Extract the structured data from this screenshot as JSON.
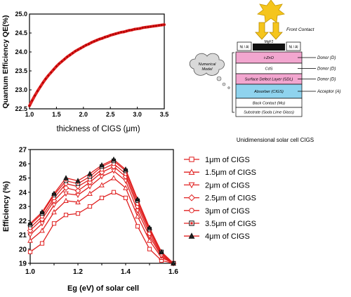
{
  "colors": {
    "series": "#e02020",
    "top_line": "#e02020",
    "layer_izno": "#f2a6cf",
    "layer_sdl": "#f2a6cf",
    "layer_absorber": "#8fd3ee",
    "layer_plain": "#ffffff",
    "contact_dark": "#111111",
    "sun": "#f5c51c",
    "arrow": "#f5c51c"
  },
  "top_chart": {
    "ylabel": "Quantum Efficiency QE(%)",
    "xlabel": "thickness of CIGS (μm)",
    "x_ticks": [
      "1.0",
      "1.5",
      "2.0",
      "2.5",
      "3.0",
      "3.5"
    ],
    "y_ticks": [
      "22.5",
      "23.0",
      "23.5",
      "24.0",
      "24.5",
      "25.0"
    ]
  },
  "bottom_chart": {
    "ylabel": "Efficiency (%)",
    "xlabel": "Eg (eV) of solar cell",
    "x_ticks": [
      "1.0",
      "1.2",
      "1.4",
      "1.6"
    ],
    "y_ticks": [
      "19",
      "20",
      "21",
      "22",
      "23",
      "24",
      "25",
      "26",
      "27"
    ]
  },
  "legend": [
    {
      "label": "1μm of CIGS",
      "marker": "square"
    },
    {
      "label": "1.5μm of CIGS",
      "marker": "triangle-up"
    },
    {
      "label": "2μm of CIGS",
      "marker": "triangle-down"
    },
    {
      "label": "2.5μm of CIGS",
      "marker": "diamond"
    },
    {
      "label": "3μm of CIGS",
      "marker": "circle"
    },
    {
      "label": "3.5μm of CIGS",
      "marker": "square-dark"
    },
    {
      "label": "4μm of CIGS",
      "marker": "triangle-dark"
    }
  ],
  "diagram": {
    "caption": "Unidimensional solar cell CIGS",
    "front_contact": "Front Contact",
    "cloud_label": "Numerical Model",
    "contact_left": "Ni / Al",
    "contact_right": "Ni / Al",
    "mgf2": "MgF2",
    "layers": [
      {
        "name": "i-ZnO",
        "side_label": "Donor (D)",
        "color_key": "layer_izno"
      },
      {
        "name": "CdS",
        "side_label": "Donor (D)",
        "color_key": "layer_plain"
      },
      {
        "name": "Surface Defect Layer (SDL)",
        "side_label": "Donor (D)",
        "color_key": "layer_sdl"
      },
      {
        "name": "Absorber (CIGS)",
        "side_label": "Acceptor (A)",
        "color_key": "layer_absorber"
      },
      {
        "name": "Back Contact (Mo)",
        "side_label": "",
        "color_key": "layer_plain"
      },
      {
        "name": "Substrate (Soda Lime Glass)",
        "side_label": "",
        "color_key": "layer_plain"
      }
    ]
  },
  "chart_data": [
    {
      "type": "line",
      "xlabel": "thickness of CIGS (μm)",
      "ylabel": "Quantum Efficiency QE(%)",
      "xlim": [
        1.0,
        3.5
      ],
      "ylim": [
        22.5,
        25.0
      ],
      "series": [
        {
          "x": [
            1.0,
            1.05,
            1.1,
            1.15,
            1.2,
            1.25,
            1.3,
            1.35,
            1.4,
            1.45,
            1.5,
            1.55,
            1.6,
            1.65,
            1.7,
            1.75,
            1.8,
            1.85,
            1.9,
            1.95,
            2.0,
            2.05,
            2.1,
            2.15,
            2.2,
            2.25,
            2.3,
            2.35,
            2.4,
            2.45,
            2.5,
            2.55,
            2.6,
            2.65,
            2.7,
            2.75,
            2.8,
            2.85,
            2.9,
            2.95,
            3.0,
            3.05,
            3.1,
            3.15,
            3.2,
            3.25,
            3.3,
            3.35,
            3.4,
            3.45,
            3.5
          ],
          "values": [
            22.58,
            22.72,
            22.85,
            22.97,
            23.08,
            23.19,
            23.29,
            23.38,
            23.46,
            23.54,
            23.62,
            23.69,
            23.75,
            23.81,
            23.87,
            23.92,
            23.97,
            24.02,
            24.06,
            24.1,
            24.14,
            24.18,
            24.21,
            24.25,
            24.28,
            24.31,
            24.34,
            24.36,
            24.39,
            24.41,
            24.44,
            24.46,
            24.48,
            24.5,
            24.52,
            24.53,
            24.55,
            24.57,
            24.58,
            24.6,
            24.61,
            24.62,
            24.64,
            24.65,
            24.66,
            24.67,
            24.68,
            24.69,
            24.7,
            24.71,
            24.72
          ]
        }
      ]
    },
    {
      "type": "line",
      "xlabel": "Eg (eV) of solar cell",
      "ylabel": "Efficiency (%)",
      "xlim": [
        1.0,
        1.6
      ],
      "ylim": [
        19,
        27
      ],
      "x": [
        1.0,
        1.05,
        1.1,
        1.15,
        1.2,
        1.25,
        1.3,
        1.35,
        1.4,
        1.45,
        1.5,
        1.55,
        1.6
      ],
      "series": [
        {
          "name": "1μm of CIGS",
          "values": [
            19.8,
            20.4,
            21.8,
            22.4,
            22.5,
            23.0,
            23.6,
            24.0,
            23.6,
            21.6,
            20.0,
            19.2,
            19.0
          ]
        },
        {
          "name": "1.5μm of CIGS",
          "values": [
            20.6,
            21.3,
            22.6,
            23.4,
            23.3,
            23.9,
            24.5,
            25.0,
            24.3,
            22.3,
            20.6,
            19.4,
            19.0
          ]
        },
        {
          "name": "2μm of CIGS",
          "values": [
            21.0,
            21.8,
            23.1,
            23.9,
            23.8,
            24.4,
            25.1,
            25.5,
            24.8,
            22.7,
            20.9,
            19.5,
            19.0
          ]
        },
        {
          "name": "2.5μm of CIGS",
          "values": [
            21.3,
            22.1,
            23.4,
            24.3,
            24.1,
            24.7,
            25.4,
            25.8,
            25.1,
            23.0,
            21.1,
            19.6,
            19.0
          ]
        },
        {
          "name": "3μm of CIGS",
          "values": [
            21.5,
            22.3,
            23.6,
            24.6,
            24.4,
            24.9,
            25.6,
            26.0,
            25.3,
            23.2,
            21.3,
            19.7,
            19.0
          ]
        },
        {
          "name": "3.5μm of CIGS",
          "values": [
            21.7,
            22.5,
            23.8,
            24.8,
            24.6,
            25.1,
            25.8,
            26.2,
            25.5,
            23.4,
            21.4,
            19.8,
            19.0
          ]
        },
        {
          "name": "4μm of CIGS",
          "values": [
            21.8,
            22.6,
            23.9,
            25.0,
            24.8,
            25.3,
            25.9,
            26.3,
            25.6,
            23.5,
            21.5,
            19.8,
            19.0
          ]
        }
      ]
    }
  ]
}
